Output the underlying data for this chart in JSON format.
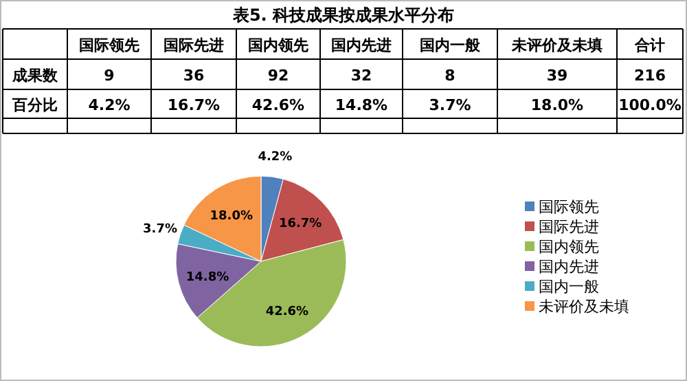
{
  "chart_data": {
    "type": "pie",
    "title": "表5. 科技成果按成果水平分布",
    "categories": [
      "国际领先",
      "国际先进",
      "国内领先",
      "国内先进",
      "国内一般",
      "未评价及未填"
    ],
    "values": [
      4.2,
      16.7,
      42.6,
      14.8,
      3.7,
      18.0
    ],
    "value_labels": [
      "4.2%",
      "16.7%",
      "42.6%",
      "14.8%",
      "3.7%",
      "18.0%"
    ],
    "colors": [
      "#4f81bd",
      "#c0504d",
      "#9bbb59",
      "#8064a2",
      "#4bacc6",
      "#f79646"
    ],
    "annotations": [
      "成果数",
      "百分比",
      "合计",
      "216",
      "100.0%",
      "9",
      "36",
      "92",
      "32",
      "8",
      "39"
    ],
    "legend": "right"
  }
}
